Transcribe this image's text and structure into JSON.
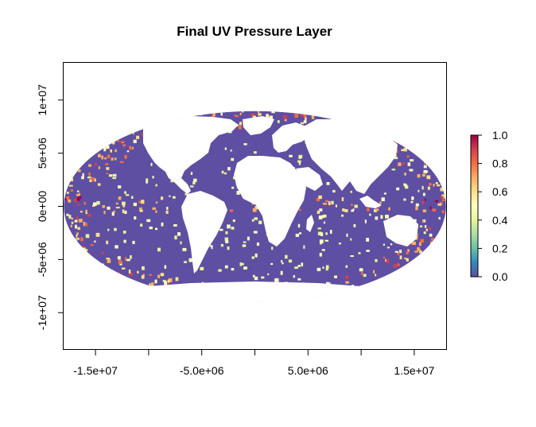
{
  "title": "Final UV Pressure Layer",
  "map": {
    "projection": "Mollweide",
    "xlim": [
      -18000000,
      18000000
    ],
    "ylim": [
      -13500000,
      13500000
    ],
    "x_ticks": [
      -15000000,
      -10000000,
      -5000000,
      0,
      5000000,
      10000000,
      15000000
    ],
    "x_tick_labels": [
      "-1.5e+07",
      "",
      "-5.0e+06",
      "",
      "5.0e+06",
      "",
      "1.5e+07"
    ],
    "y_ticks": [
      -10000000,
      -5000000,
      0,
      5000000,
      10000000
    ],
    "y_tick_labels": [
      "-1e+07",
      "-5e+06",
      "0e+00",
      "5e+06",
      "1e+07"
    ],
    "background_color": "#5e4fa2",
    "land_color": "#ffffff"
  },
  "legend": {
    "range": [
      0.0,
      1.0
    ],
    "labels": [
      "0.0",
      "0.2",
      "0.4",
      "0.6",
      "0.8",
      "1.0"
    ],
    "palette": [
      "#5e4fa2",
      "#3288bd",
      "#66c2a5",
      "#abdda4",
      "#e6f598",
      "#ffffbf",
      "#fee08b",
      "#fdae61",
      "#f46d43",
      "#d53e4f",
      "#9e0142"
    ]
  }
}
